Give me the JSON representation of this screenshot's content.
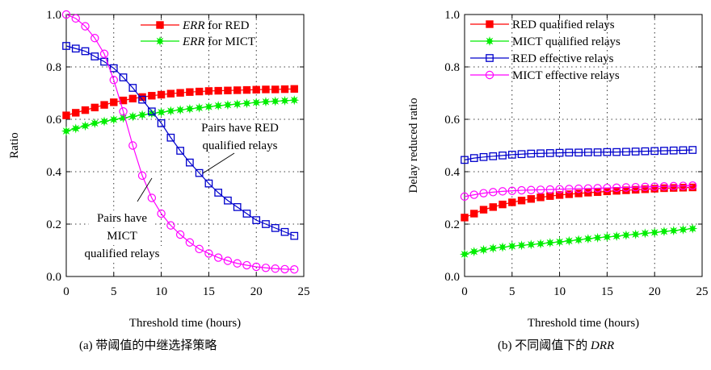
{
  "chart_data": [
    {
      "type": "line",
      "xlabel": "Threshold time (hours)",
      "ylabel": "Ratio",
      "xlim": [
        0,
        25
      ],
      "ylim": [
        0,
        1.0
      ],
      "xticks": [
        "0",
        "5",
        "10",
        "15",
        "20",
        "25"
      ],
      "yticks": [
        "0.0",
        "0.2",
        "0.4",
        "0.6",
        "0.8",
        "1.0"
      ],
      "grid": "dotted",
      "legend_position": "top-right",
      "caption": "(a)  带阈值的中继选择策略",
      "annotations": [
        {
          "lines": [
            "Pairs have RED",
            "qualified relays"
          ]
        },
        {
          "lines": [
            "Pairs have",
            "MICT",
            "qualified relays"
          ]
        }
      ],
      "x": [
        0,
        1,
        2,
        3,
        4,
        5,
        6,
        7,
        8,
        9,
        10,
        11,
        12,
        13,
        14,
        15,
        16,
        17,
        18,
        19,
        20,
        21,
        22,
        23,
        24
      ],
      "series": [
        {
          "name_italic": "ERR",
          "name_rest": " for RED",
          "color": "#ff0000",
          "marker": "square-filled",
          "values": [
            0.615,
            0.625,
            0.635,
            0.645,
            0.655,
            0.665,
            0.672,
            0.679,
            0.685,
            0.69,
            0.694,
            0.698,
            0.701,
            0.704,
            0.706,
            0.708,
            0.709,
            0.71,
            0.711,
            0.712,
            0.713,
            0.714,
            0.714,
            0.715,
            0.716
          ]
        },
        {
          "name_italic": "ERR",
          "name_rest": " for MICT",
          "color": "#00ee00",
          "marker": "star",
          "values": [
            0.555,
            0.565,
            0.575,
            0.585,
            0.592,
            0.599,
            0.605,
            0.611,
            0.617,
            0.622,
            0.627,
            0.632,
            0.636,
            0.64,
            0.644,
            0.648,
            0.652,
            0.655,
            0.658,
            0.661,
            0.664,
            0.667,
            0.669,
            0.671,
            0.673
          ]
        },
        {
          "name": "RED qualified relays curve",
          "color": "#0000cc",
          "marker": "square-open",
          "legend": false,
          "values": [
            0.88,
            0.87,
            0.86,
            0.84,
            0.82,
            0.795,
            0.76,
            0.72,
            0.675,
            0.63,
            0.585,
            0.53,
            0.48,
            0.435,
            0.395,
            0.355,
            0.32,
            0.29,
            0.265,
            0.24,
            0.215,
            0.2,
            0.185,
            0.17,
            0.155
          ]
        },
        {
          "name": "MICT qualified relays curve",
          "color": "#ff00ff",
          "marker": "circle-open",
          "legend": false,
          "values": [
            1.0,
            0.985,
            0.955,
            0.91,
            0.85,
            0.75,
            0.63,
            0.5,
            0.385,
            0.3,
            0.24,
            0.195,
            0.16,
            0.13,
            0.105,
            0.088,
            0.072,
            0.06,
            0.05,
            0.043,
            0.037,
            0.033,
            0.03,
            0.028,
            0.027
          ]
        }
      ]
    },
    {
      "type": "line",
      "xlabel": "Threshold time (hours)",
      "ylabel": "Delay reduced ratio",
      "xlim": [
        0,
        25
      ],
      "ylim": [
        0,
        1.0
      ],
      "xticks": [
        "0",
        "5",
        "10",
        "15",
        "20",
        "25"
      ],
      "yticks": [
        "0.0",
        "0.2",
        "0.4",
        "0.6",
        "0.8",
        "1.0"
      ],
      "grid": "dotted",
      "legend_position": "top-left",
      "caption_prefix": "(b)  不同阈值下的 ",
      "caption_italic": "DRR",
      "x": [
        0,
        1,
        2,
        3,
        4,
        5,
        6,
        7,
        8,
        9,
        10,
        11,
        12,
        13,
        14,
        15,
        16,
        17,
        18,
        19,
        20,
        21,
        22,
        23,
        24
      ],
      "series": [
        {
          "name": "RED qualified relays",
          "color": "#ff0000",
          "marker": "square-filled",
          "values": [
            0.225,
            0.24,
            0.255,
            0.265,
            0.275,
            0.283,
            0.29,
            0.296,
            0.302,
            0.307,
            0.311,
            0.314,
            0.317,
            0.32,
            0.322,
            0.325,
            0.327,
            0.329,
            0.331,
            0.333,
            0.335,
            0.337,
            0.338,
            0.339,
            0.34
          ]
        },
        {
          "name": "MICT qualified relays",
          "color": "#00ee00",
          "marker": "star",
          "values": [
            0.085,
            0.095,
            0.102,
            0.108,
            0.112,
            0.116,
            0.119,
            0.122,
            0.125,
            0.129,
            0.132,
            0.136,
            0.14,
            0.144,
            0.148,
            0.151,
            0.154,
            0.158,
            0.161,
            0.165,
            0.168,
            0.172,
            0.175,
            0.179,
            0.183
          ]
        },
        {
          "name": "RED effective relays",
          "color": "#0000cc",
          "marker": "square-open",
          "values": [
            0.445,
            0.452,
            0.456,
            0.459,
            0.462,
            0.465,
            0.467,
            0.469,
            0.47,
            0.471,
            0.472,
            0.473,
            0.473,
            0.474,
            0.474,
            0.475,
            0.475,
            0.476,
            0.477,
            0.478,
            0.479,
            0.48,
            0.481,
            0.482,
            0.483
          ]
        },
        {
          "name": "MICT effective relays",
          "color": "#ff00ff",
          "marker": "circle-open",
          "values": [
            0.305,
            0.312,
            0.318,
            0.322,
            0.325,
            0.327,
            0.329,
            0.33,
            0.331,
            0.332,
            0.333,
            0.334,
            0.335,
            0.336,
            0.337,
            0.338,
            0.339,
            0.34,
            0.341,
            0.342,
            0.343,
            0.344,
            0.345,
            0.346,
            0.347
          ]
        }
      ]
    }
  ]
}
